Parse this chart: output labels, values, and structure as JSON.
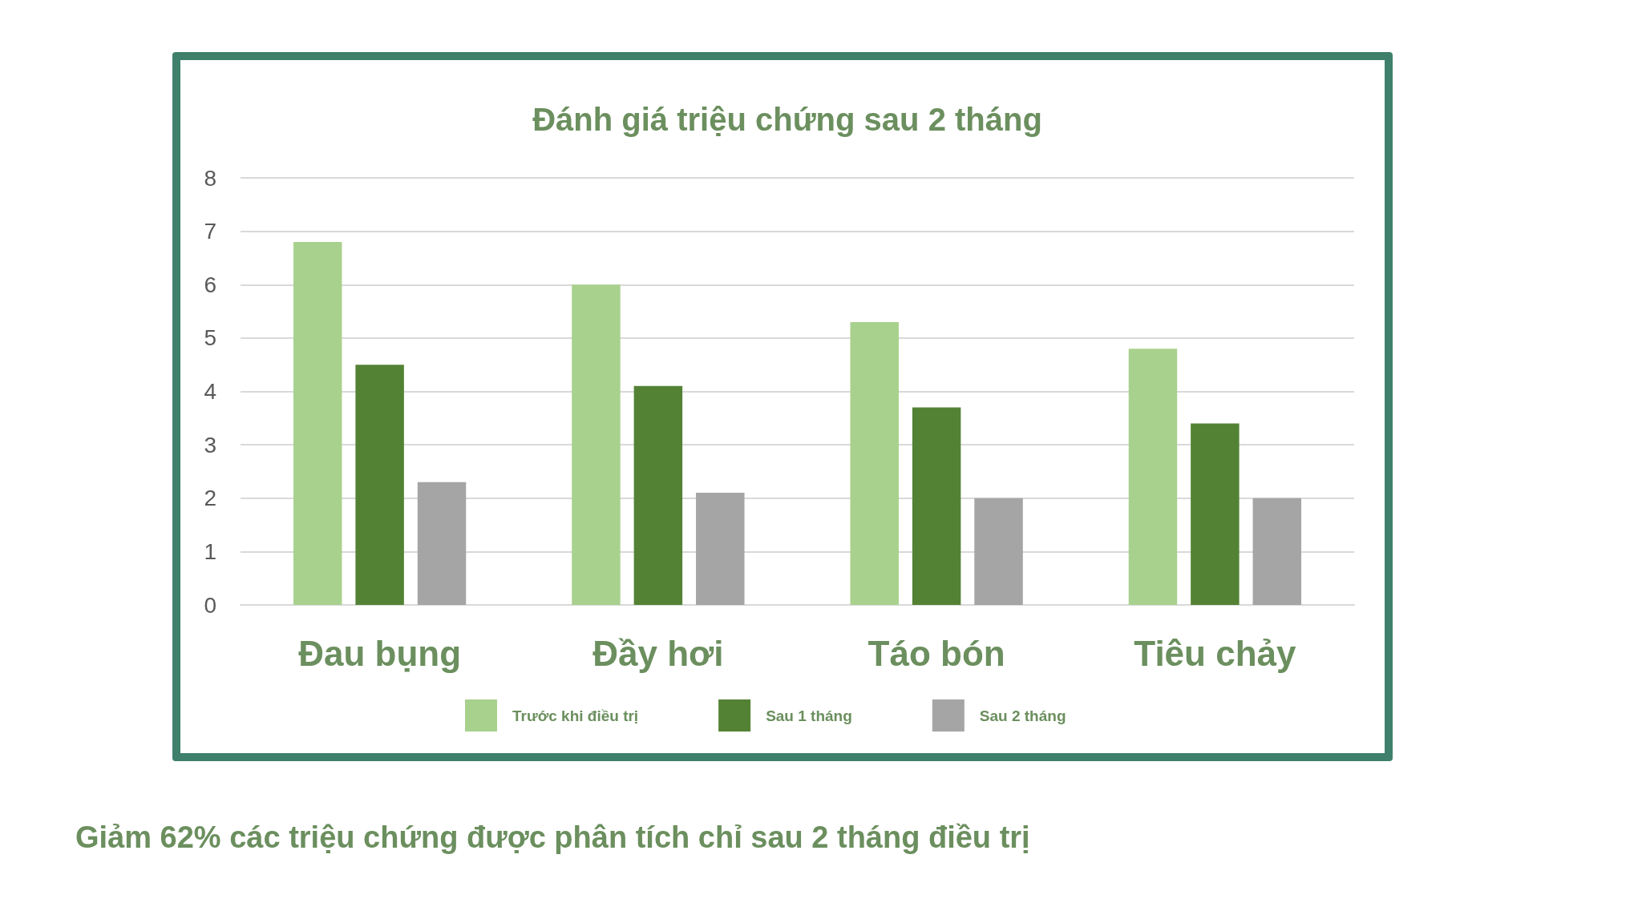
{
  "chart_data": {
    "type": "bar",
    "title": "Đánh giá triệu chứng sau 2 tháng",
    "categories": [
      "Đau bụng",
      "Đầy hơi",
      "Táo bón",
      "Tiêu chảy"
    ],
    "series": [
      {
        "name": "Trước khi điều trị",
        "color": "#a9d18e",
        "values": [
          6.8,
          6.0,
          5.3,
          4.8
        ]
      },
      {
        "name": "Sau 1 tháng",
        "color": "#548235",
        "values": [
          4.5,
          4.1,
          3.7,
          3.4
        ]
      },
      {
        "name": "Sau 2 tháng",
        "color": "#a5a5a5",
        "values": [
          2.3,
          2.1,
          2.0,
          2.0
        ]
      }
    ],
    "ylim": [
      0,
      8
    ],
    "yticks": [
      0,
      1,
      2,
      3,
      4,
      5,
      6,
      7,
      8
    ],
    "grid": "y",
    "legend": "bottom",
    "annotations": [
      "Giảm 62% các triệu chứng được phân tích chỉ sau 2 tháng điều trị"
    ]
  }
}
